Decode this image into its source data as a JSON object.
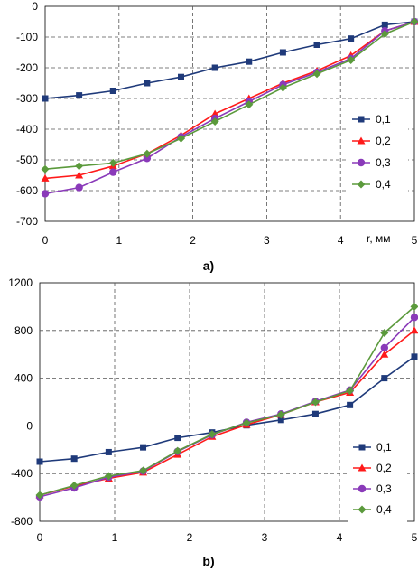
{
  "colors": {
    "0,1": "#1f3a7a",
    "0,2": "#ff1a1a",
    "0,3": "#8a3ab9",
    "0,4": "#5b9a3c"
  },
  "chart_data": [
    {
      "type": "line",
      "panel_label": "a)",
      "xlabel": "r, мм",
      "ylabel": "",
      "xlim": [
        0,
        5
      ],
      "ylim": [
        -700,
        0
      ],
      "xticks": [
        "0",
        "1",
        "2",
        "3",
        "4",
        "5"
      ],
      "yticks": [
        "0",
        "-100",
        "-200",
        "-300",
        "-400",
        "-500",
        "-600",
        "-700"
      ],
      "grid": true,
      "legend_position": "right",
      "series": [
        {
          "name": "0,1",
          "marker": "square",
          "x": [
            0,
            0.46,
            0.92,
            1.38,
            1.84,
            2.3,
            2.76,
            3.22,
            3.68,
            4.14,
            4.6,
            5.0
          ],
          "y": [
            -300,
            -290,
            -275,
            -250,
            -230,
            -200,
            -180,
            -150,
            -125,
            -105,
            -60,
            -50
          ]
        },
        {
          "name": "0,2",
          "marker": "triangle",
          "x": [
            0,
            0.46,
            0.92,
            1.38,
            1.84,
            2.3,
            2.76,
            3.22,
            3.68,
            4.14,
            4.6,
            5.0
          ],
          "y": [
            -560,
            -550,
            -520,
            -480,
            -420,
            -350,
            -300,
            -250,
            -210,
            -160,
            -80,
            -50
          ]
        },
        {
          "name": "0,3",
          "marker": "circle",
          "x": [
            0,
            0.46,
            0.92,
            1.38,
            1.84,
            2.3,
            2.76,
            3.22,
            3.68,
            4.14,
            4.6,
            5.0
          ],
          "y": [
            -610,
            -590,
            -540,
            -495,
            -425,
            -365,
            -310,
            -255,
            -215,
            -170,
            -80,
            -50
          ]
        },
        {
          "name": "0,4",
          "marker": "diamond",
          "x": [
            0,
            0.46,
            0.92,
            1.38,
            1.84,
            2.3,
            2.76,
            3.22,
            3.68,
            4.14,
            4.6,
            5.0
          ],
          "y": [
            -530,
            -520,
            -510,
            -480,
            -430,
            -375,
            -320,
            -265,
            -220,
            -175,
            -90,
            -50
          ]
        }
      ]
    },
    {
      "type": "line",
      "panel_label": "b)",
      "xlabel": "",
      "ylabel": "",
      "xlim": [
        0,
        5
      ],
      "ylim": [
        -800,
        1200
      ],
      "xticks": [
        "0",
        "1",
        "2",
        "3",
        "4",
        "5"
      ],
      "yticks": [
        "1200",
        "800",
        "400",
        "0",
        "-400",
        "-800"
      ],
      "grid": true,
      "legend_position": "bottom-right",
      "series": [
        {
          "name": "0,1",
          "marker": "square",
          "x": [
            0,
            0.46,
            0.92,
            1.38,
            1.84,
            2.3,
            2.76,
            3.22,
            3.68,
            4.14,
            4.6,
            5.0
          ],
          "y": [
            -300,
            -275,
            -220,
            -180,
            -100,
            -55,
            5,
            50,
            100,
            175,
            400,
            580
          ]
        },
        {
          "name": "0,2",
          "marker": "triangle",
          "x": [
            0,
            0.46,
            0.92,
            1.38,
            1.84,
            2.3,
            2.76,
            3.22,
            3.68,
            4.14,
            4.6,
            5.0
          ],
          "y": [
            -580,
            -505,
            -440,
            -390,
            -240,
            -90,
            10,
            95,
            200,
            280,
            600,
            800
          ]
        },
        {
          "name": "0,3",
          "marker": "circle",
          "x": [
            0,
            0.46,
            0.92,
            1.38,
            1.84,
            2.3,
            2.76,
            3.22,
            3.68,
            4.14,
            4.6,
            5.0
          ],
          "y": [
            -595,
            -520,
            -430,
            -380,
            -215,
            -75,
            30,
            100,
            205,
            300,
            655,
            910
          ]
        },
        {
          "name": "0,4",
          "marker": "diamond",
          "x": [
            0,
            0.46,
            0.92,
            1.38,
            1.84,
            2.3,
            2.76,
            3.22,
            3.68,
            4.14,
            4.6,
            5.0
          ],
          "y": [
            -580,
            -500,
            -420,
            -375,
            -210,
            -70,
            25,
            95,
            200,
            295,
            780,
            1000
          ]
        }
      ]
    }
  ]
}
